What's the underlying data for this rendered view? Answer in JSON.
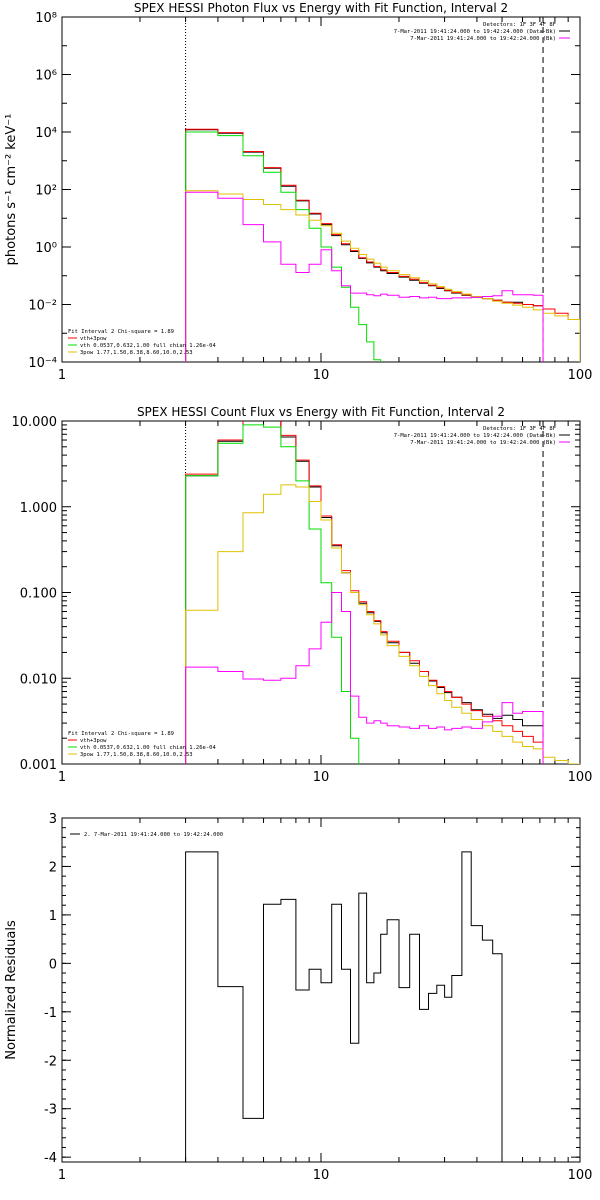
{
  "chart_data": [
    {
      "type": "line",
      "title": "SPEX HESSI Photon Flux vs Energy with Fit Function, Interval 2",
      "xlabel": "",
      "ylabel": "photons s⁻¹ cm⁻² keV⁻¹",
      "xscale": "log",
      "yscale": "log",
      "xlim": [
        1,
        100
      ],
      "ylim": [
        0.0001,
        100000000
      ],
      "xticks": [
        1,
        10,
        100
      ],
      "xtick_labels": [
        "1",
        "10",
        "100"
      ],
      "yticks": [
        0.0001,
        0.01,
        1,
        100,
        10000,
        1000000,
        100000000
      ],
      "ytick_labels": [
        "10⁻⁴",
        "10⁻²",
        "10⁰",
        "10²",
        "10⁴",
        "10⁶",
        "10⁸"
      ],
      "vlines": [
        {
          "x": 3,
          "style": "dotted"
        },
        {
          "x": 72,
          "style": "dashed"
        }
      ],
      "legend_tr": [
        {
          "text": "Detectors: 1F 3F 4F 8F",
          "color": "#000000"
        },
        {
          "text": "7-Mar-2011 19:41:24.000 to 19:42:24.000 (Data-Bk)",
          "color": "#000000"
        },
        {
          "text": "7-Mar-2011 19:41:24.000 to 19:42:24.000 (Bk)",
          "color": "#ff00ff"
        }
      ],
      "legend_bl": [
        {
          "text": "Fit Interval 2   Chi-square = 1.89",
          "color": "#000000"
        },
        {
          "text": "vth+3pow",
          "color": "#ff0000"
        },
        {
          "text": "vth 0.0537,0.632,1.00  full chian 1.26e-04",
          "color": "#00dd00"
        },
        {
          "text": "3pow 1.77,1.50,8.38,8.60,10.0,2.53",
          "color": "#e0c000"
        }
      ],
      "edges": [
        3,
        4,
        5,
        6,
        7,
        8,
        9,
        10,
        11,
        12,
        13,
        14,
        15,
        16,
        17,
        18,
        20,
        22,
        24,
        26,
        28,
        30,
        32,
        35,
        38,
        42,
        46,
        50,
        55,
        60,
        66,
        72,
        80,
        90,
        100
      ],
      "series": [
        {
          "name": "Data-Bk",
          "color": "#000000",
          "values": [
            12000,
            9000,
            2000,
            550,
            130,
            40,
            14,
            6,
            2.5,
            1.2,
            0.7,
            0.4,
            0.28,
            0.2,
            0.15,
            0.12,
            0.09,
            0.07,
            0.055,
            0.045,
            0.036,
            0.03,
            0.025,
            0.021,
            0.018,
            0.016,
            0.014,
            0.012,
            0.012,
            0.01,
            0.009
          ]
        },
        {
          "name": "vth+3pow",
          "color": "#ff0000",
          "values": [
            12500,
            9500,
            2100,
            580,
            140,
            42,
            15,
            6.5,
            2.7,
            1.3,
            0.75,
            0.42,
            0.3,
            0.21,
            0.16,
            0.13,
            0.095,
            0.075,
            0.058,
            0.047,
            0.038,
            0.031,
            0.026,
            0.022,
            0.019,
            0.016,
            0.014,
            0.012,
            0.011,
            0.01,
            0.009,
            0.007,
            0.005,
            0.003
          ]
        },
        {
          "name": "vth",
          "color": "#00dd00",
          "values": [
            10000,
            7500,
            1500,
            400,
            80,
            20,
            4.5,
            1,
            0.2,
            0.04,
            0.008,
            0.002,
            0.0005,
            0.00012
          ]
        },
        {
          "name": "3pow",
          "color": "#e0c000",
          "values": [
            90,
            70,
            45,
            30,
            20,
            13,
            8.5,
            5.5,
            3,
            1.6,
            0.9,
            0.55,
            0.38,
            0.27,
            0.2,
            0.15,
            0.11,
            0.085,
            0.066,
            0.052,
            0.042,
            0.034,
            0.028,
            0.023,
            0.019,
            0.016,
            0.013,
            0.011,
            0.0095,
            0.008,
            0.0065,
            0.005,
            0.004,
            0.003
          ]
        },
        {
          "name": "Bk",
          "color": "#ff00ff",
          "values": [
            80,
            50,
            6,
            1.5,
            0.25,
            0.13,
            0.25,
            0.8,
            0.15,
            0.045,
            0.025,
            0.025,
            0.022,
            0.02,
            0.023,
            0.021,
            0.018,
            0.019,
            0.017,
            0.018,
            0.016,
            0.016,
            0.017,
            0.017,
            0.018,
            0.019,
            0.02,
            0.03,
            0.022,
            0.022,
            0.021
          ]
        }
      ]
    },
    {
      "type": "line",
      "title": "SPEX HESSI Count Flux vs Energy with Fit Function, Interval 2",
      "xlabel": "",
      "ylabel": "",
      "xscale": "log",
      "yscale": "log",
      "xlim": [
        1,
        100
      ],
      "ylim": [
        0.001,
        10
      ],
      "xticks": [
        1,
        10,
        100
      ],
      "xtick_labels": [
        "1",
        "10",
        "100"
      ],
      "yticks": [
        0.001,
        0.01,
        0.1,
        1,
        10
      ],
      "ytick_labels": [
        "0.001",
        "0.010",
        "0.100",
        "1.000",
        "10.000"
      ],
      "vlines": [
        {
          "x": 3,
          "style": "dotted"
        },
        {
          "x": 72,
          "style": "dashed"
        }
      ],
      "legend_tr": [
        {
          "text": "Detectors: 1F 3F 4F 8F",
          "color": "#000000"
        },
        {
          "text": "7-Mar-2011 19:41:24.000 to 19:42:24.000 (Data-Bk)",
          "color": "#000000"
        },
        {
          "text": "7-Mar-2011 19:41:24.000 to 19:42:24.000 (Bk)",
          "color": "#ff00ff"
        }
      ],
      "legend_bl": [
        {
          "text": "Fit Interval 2   Chi-square = 1.89",
          "color": "#000000"
        },
        {
          "text": "vth+3pow",
          "color": "#ff0000"
        },
        {
          "text": "vth 0.0537,0.632,1.00  full chian 1.26e-04",
          "color": "#00dd00"
        },
        {
          "text": "3pow 1.77,1.50,8.38,8.60,10.0,2.53",
          "color": "#e0c000"
        }
      ],
      "edges": [
        3,
        4,
        5,
        6,
        7,
        8,
        9,
        10,
        11,
        12,
        13,
        14,
        15,
        16,
        17,
        18,
        20,
        22,
        24,
        26,
        28,
        30,
        32,
        35,
        38,
        42,
        46,
        50,
        55,
        60,
        66,
        72,
        80,
        90,
        100
      ],
      "series": [
        {
          "name": "Data-Bk",
          "color": "#000000",
          "values": [
            2.3,
            5.8,
            10,
            10,
            6.5,
            3.4,
            1.7,
            0.75,
            0.35,
            0.17,
            0.1,
            0.075,
            0.058,
            0.046,
            0.034,
            0.026,
            0.02,
            0.015,
            0.012,
            0.0093,
            0.0078,
            0.0068,
            0.006,
            0.0052,
            0.0043,
            0.0038,
            0.0034,
            0.0037,
            0.0033,
            0.0028,
            0.0028
          ]
        },
        {
          "name": "vth+3pow",
          "color": "#ff0000",
          "values": [
            2.4,
            6,
            10.5,
            10.2,
            6.8,
            3.5,
            1.75,
            0.78,
            0.36,
            0.18,
            0.105,
            0.078,
            0.06,
            0.047,
            0.035,
            0.027,
            0.02,
            0.016,
            0.012,
            0.0095,
            0.008,
            0.007,
            0.006,
            0.005,
            0.0042,
            0.0036,
            0.0032,
            0.0028,
            0.0024,
            0.0021,
            0.0018
          ]
        },
        {
          "name": "vth",
          "color": "#00dd00",
          "values": [
            2.3,
            5.5,
            9,
            8.5,
            5,
            2,
            0.55,
            0.13,
            0.03,
            0.007,
            0.002
          ]
        },
        {
          "name": "3pow",
          "color": "#e0c000",
          "values": [
            0.062,
            0.3,
            0.85,
            1.4,
            1.8,
            1.7,
            1.15,
            0.7,
            0.33,
            0.17,
            0.1,
            0.072,
            0.055,
            0.043,
            0.032,
            0.024,
            0.018,
            0.014,
            0.0105,
            0.0082,
            0.0066,
            0.0055,
            0.0046,
            0.0039,
            0.0033,
            0.0028,
            0.0024,
            0.0021,
            0.0018,
            0.0016,
            0.0015,
            0.0012,
            0.0011,
            0.001
          ]
        },
        {
          "name": "Bk",
          "color": "#ff00ff",
          "values": [
            0.0135,
            0.012,
            0.0098,
            0.0095,
            0.01,
            0.014,
            0.022,
            0.045,
            0.1,
            0.06,
            0.0062,
            0.0035,
            0.003,
            0.0032,
            0.003,
            0.0028,
            0.0027,
            0.0026,
            0.0028,
            0.0026,
            0.0027,
            0.0025,
            0.0026,
            0.0027,
            0.0026,
            0.0031,
            0.0036,
            0.0052,
            0.0039,
            0.0041,
            0.0041
          ]
        }
      ]
    },
    {
      "type": "line",
      "title": "",
      "xlabel": "",
      "ylabel": "Normalized Residuals",
      "xscale": "log",
      "yscale": "linear",
      "xlim": [
        1,
        100
      ],
      "ylim": [
        -4.1,
        3
      ],
      "xticks": [
        1,
        10,
        100
      ],
      "xtick_labels": [
        "1",
        "10",
        "100"
      ],
      "yticks": [
        -4,
        -3,
        -2,
        -1,
        0,
        1,
        2,
        3
      ],
      "ytick_labels": [
        "-4",
        "-3",
        "-2",
        "-1",
        "0",
        "1",
        "2",
        "3"
      ],
      "legend_tl": [
        {
          "text": "2. 7-Mar-2011 19:41:24.000 to 19:42:24.000",
          "color": "#000000"
        }
      ],
      "edges": [
        3,
        4,
        5,
        6,
        7,
        8,
        9,
        10,
        11,
        12,
        13,
        14,
        15,
        16,
        17,
        18,
        20,
        22,
        24,
        26,
        28,
        30,
        32,
        35,
        38,
        42,
        46,
        50,
        55,
        60,
        66,
        72
      ],
      "series": [
        {
          "name": "2. 7-Mar-2011 19:41:24.000 to 19:42:24.000",
          "color": "#000000",
          "values": [
            2.3,
            -0.48,
            -3.2,
            1.22,
            1.32,
            -0.55,
            -0.12,
            -0.4,
            1.22,
            -0.12,
            -1.65,
            1.45,
            -0.4,
            -0.2,
            0.6,
            0.9,
            -0.5,
            0.6,
            -0.95,
            -0.62,
            -0.45,
            -0.7,
            -0.25,
            2.3,
            0.78,
            0.48,
            0.2
          ],
          "start_y": -4.1
        }
      ]
    }
  ]
}
